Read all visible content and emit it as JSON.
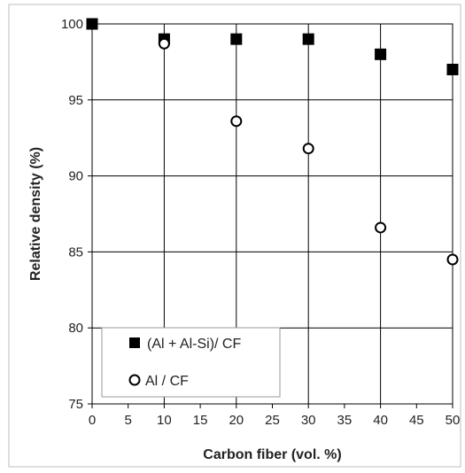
{
  "chart_data": {
    "type": "scatter",
    "title": "",
    "xlabel": "Carbon fiber (vol. %)",
    "ylabel": "Relative density (%)",
    "xlim": [
      0,
      50
    ],
    "ylim": [
      75,
      100
    ],
    "xticks": [
      0,
      5,
      10,
      15,
      20,
      25,
      30,
      35,
      40,
      45,
      50
    ],
    "yticks": [
      75,
      80,
      85,
      90,
      95,
      100
    ],
    "grid": true,
    "legend_position": "bottom-left",
    "series": [
      {
        "name": "(Al + Al-Si)/ CF",
        "marker": "filled-square",
        "color": "#000000",
        "x": [
          0,
          10,
          20,
          30,
          40,
          50
        ],
        "y": [
          100,
          99,
          99,
          99,
          98,
          97
        ]
      },
      {
        "name": "Al / CF",
        "marker": "open-circle",
        "color": "#000000",
        "x": [
          10,
          20,
          30,
          40,
          50
        ],
        "y": [
          98.7,
          93.6,
          91.8,
          86.6,
          84.5
        ]
      }
    ]
  }
}
